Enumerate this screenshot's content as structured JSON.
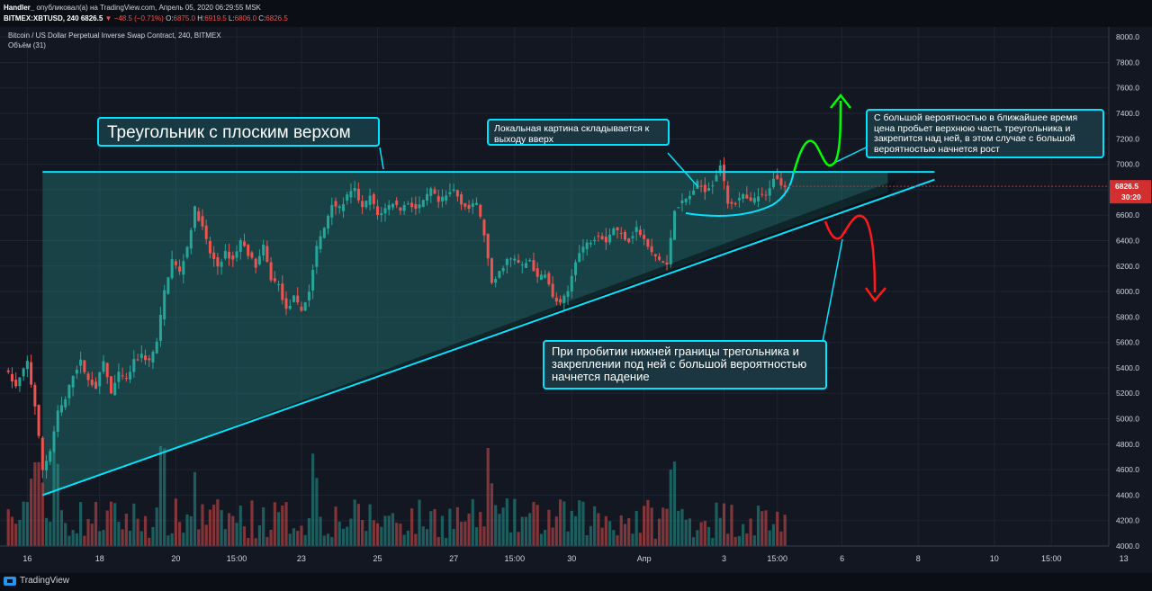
{
  "header": {
    "author": "Handler_",
    "published_text": "опубликовал(а) на TradingView.com, Апрель 05, 2020 06:29:55 MSK",
    "symbol": "BITMEX:XBTUSD, 240",
    "last": "6826.5",
    "change": "−48.5 (−0.71%)",
    "o_label": "O:",
    "o_val": "6875.0",
    "h_label": "H:",
    "h_val": "6919.5",
    "l_label": "L:",
    "l_val": "6806.0",
    "c_label": "C:",
    "c_val": "6826.5"
  },
  "legend": {
    "title": "Bitcoin / US Dollar Perpetual Inverse Swap Contract, 240, BITMEX",
    "volume": "Объём (31)"
  },
  "price_tag": {
    "value": "6826.5",
    "countdown": "30:20"
  },
  "footer": {
    "brand": "TradingView"
  },
  "notes": {
    "title": "Треугольник с плоским верхом",
    "local": "Локальная картина складывается к выходу вверх",
    "up": "С большой вероятностью в ближайшее время цена пробьет верхнюю часть треугольника и закрепится над ней, в этом случае с большой вероятностью начнется рост",
    "down": "При пробитии нижней границы трегольника и закреплении под ней с большой вероятностью начнется падение"
  },
  "colors": {
    "background": "#131722",
    "up_candle": "#26a69a",
    "down_candle": "#ef5350",
    "triangle_line": "#00e5ff",
    "arrow_up": "#00ff00",
    "arrow_down": "#ff1a1a",
    "last_price_tag": "#d32f2f"
  },
  "chart_data": {
    "type": "candlestick",
    "y_ticks": [
      4000,
      4200,
      4400,
      4600,
      4800,
      5000,
      5200,
      5400,
      5600,
      5800,
      6000,
      6200,
      6400,
      6600,
      6800,
      7000,
      7200,
      7400,
      7600,
      7800,
      8000
    ],
    "y_tick_labels": [
      "4000.0",
      "4200.0",
      "4400.0",
      "4600.0",
      "4800.0",
      "5000.0",
      "5200.0",
      "5400.0",
      "5600.0",
      "5800.0",
      "6000.0",
      "6200.0",
      "6400.0",
      "6600.0",
      "6800.0",
      "7000.0",
      "7200.0",
      "7400.0",
      "7600.0",
      "7800.0",
      "8000.0"
    ],
    "x_ticks": [
      "16",
      "18",
      "20",
      "15:00",
      "23",
      "25",
      "27",
      "15:00",
      "30",
      "Апр",
      "3",
      "15:00",
      "6",
      "8",
      "10",
      "15:00",
      "13"
    ],
    "x_tick_bars": [
      6,
      25,
      45,
      61,
      78,
      98,
      118,
      134,
      149,
      168,
      189,
      203,
      220,
      240,
      260,
      275,
      294
    ],
    "path_points": [
      [
        0,
        5400
      ],
      [
        3,
        5250
      ],
      [
        6,
        5450
      ],
      [
        8,
        5100
      ],
      [
        10,
        4600
      ],
      [
        12,
        4750
      ],
      [
        14,
        5050
      ],
      [
        16,
        5150
      ],
      [
        18,
        5350
      ],
      [
        20,
        5450
      ],
      [
        22,
        5300
      ],
      [
        24,
        5250
      ],
      [
        26,
        5450
      ],
      [
        28,
        5200
      ],
      [
        30,
        5350
      ],
      [
        32,
        5300
      ],
      [
        34,
        5450
      ],
      [
        36,
        5500
      ],
      [
        38,
        5450
      ],
      [
        40,
        5600
      ],
      [
        42,
        6000
      ],
      [
        44,
        6250
      ],
      [
        46,
        6150
      ],
      [
        48,
        6350
      ],
      [
        50,
        6650
      ],
      [
        52,
        6500
      ],
      [
        54,
        6300
      ],
      [
        56,
        6200
      ],
      [
        58,
        6300
      ],
      [
        60,
        6250
      ],
      [
        62,
        6400
      ],
      [
        64,
        6300
      ],
      [
        66,
        6200
      ],
      [
        68,
        6350
      ],
      [
        70,
        6100
      ],
      [
        72,
        6050
      ],
      [
        74,
        5850
      ],
      [
        76,
        5950
      ],
      [
        78,
        5850
      ],
      [
        80,
        6000
      ],
      [
        82,
        6350
      ],
      [
        84,
        6500
      ],
      [
        86,
        6700
      ],
      [
        88,
        6650
      ],
      [
        90,
        6750
      ],
      [
        92,
        6800
      ],
      [
        94,
        6650
      ],
      [
        96,
        6750
      ],
      [
        98,
        6600
      ],
      [
        100,
        6650
      ],
      [
        102,
        6700
      ],
      [
        104,
        6650
      ],
      [
        106,
        6700
      ],
      [
        108,
        6650
      ],
      [
        110,
        6700
      ],
      [
        112,
        6800
      ],
      [
        114,
        6700
      ],
      [
        116,
        6750
      ],
      [
        118,
        6800
      ],
      [
        120,
        6700
      ],
      [
        122,
        6650
      ],
      [
        124,
        6700
      ],
      [
        126,
        6450
      ],
      [
        128,
        6050
      ],
      [
        130,
        6150
      ],
      [
        132,
        6250
      ],
      [
        134,
        6250
      ],
      [
        136,
        6200
      ],
      [
        138,
        6250
      ],
      [
        140,
        6100
      ],
      [
        142,
        6150
      ],
      [
        144,
        5950
      ],
      [
        146,
        5900
      ],
      [
        148,
        6000
      ],
      [
        150,
        6250
      ],
      [
        152,
        6350
      ],
      [
        154,
        6400
      ],
      [
        156,
        6450
      ],
      [
        158,
        6400
      ],
      [
        160,
        6500
      ],
      [
        162,
        6450
      ],
      [
        164,
        6400
      ],
      [
        166,
        6500
      ],
      [
        168,
        6400
      ],
      [
        170,
        6300
      ],
      [
        172,
        6250
      ],
      [
        174,
        6200
      ],
      [
        176,
        6650
      ],
      [
        178,
        6700
      ],
      [
        180,
        6750
      ],
      [
        182,
        6850
      ],
      [
        184,
        6800
      ],
      [
        186,
        6850
      ],
      [
        188,
        7000
      ],
      [
        190,
        6700
      ],
      [
        192,
        6700
      ],
      [
        194,
        6750
      ],
      [
        196,
        6700
      ],
      [
        198,
        6750
      ],
      [
        200,
        6750
      ],
      [
        202,
        6900
      ],
      [
        205,
        6830
      ]
    ],
    "volume": [],
    "lines": {
      "flat_top": {
        "y": 6940,
        "x_start_bar": 10,
        "x_end_bar": 232
      },
      "rising_bottom": {
        "from": [
          10,
          4400
        ],
        "to": [
          232,
          6780
        ]
      }
    },
    "last_price": 6826.5,
    "ylim": [
      3960,
      8060
    ]
  }
}
